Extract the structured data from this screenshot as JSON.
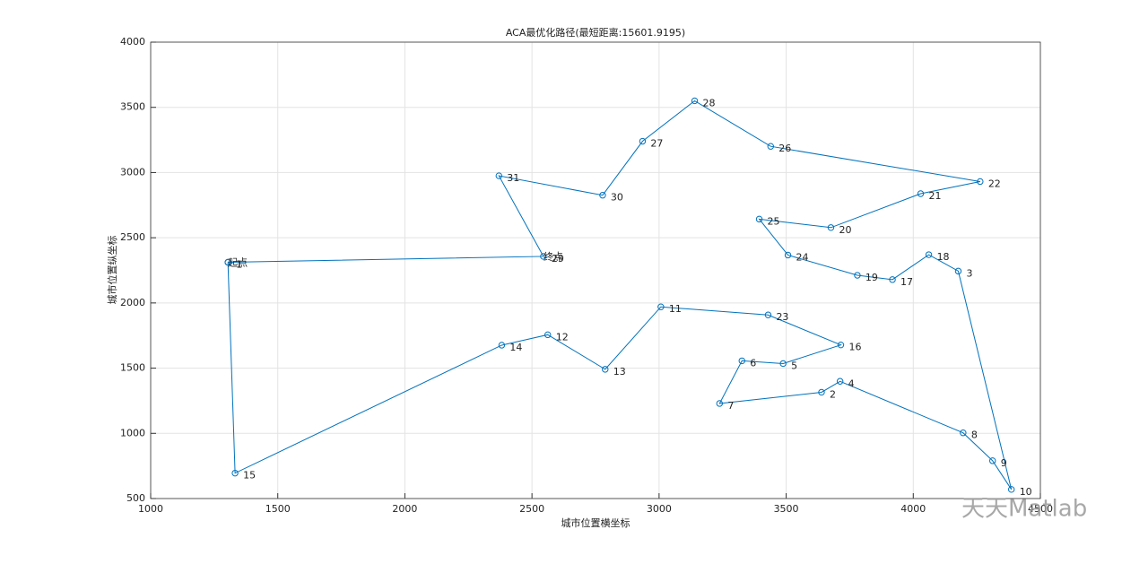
{
  "chart_data": {
    "type": "line",
    "title": "ACA最优化路径(最短距离:15601.9195)",
    "x_label": "城市位置横坐标",
    "y_label": "城市位置纵坐标",
    "x": [
      1304,
      1332,
      2381,
      2562,
      2788,
      3007,
      3429,
      3715,
      3488,
      3326,
      3238,
      3639,
      3712,
      4196,
      4312,
      4386,
      4177,
      4061,
      3918,
      3780,
      3507,
      3394,
      3676,
      4029,
      4263,
      3439,
      3140,
      2935,
      2778,
      2370,
      2545,
      1304
    ],
    "y": [
      2312,
      695,
      1676,
      1756,
      1491,
      1970,
      1908,
      1678,
      1535,
      1556,
      1229,
      1315,
      1399,
      1004,
      790,
      570,
      2244,
      2370,
      2179,
      2212,
      2367,
      2643,
      2578,
      2838,
      2931,
      3201,
      3550,
      3240,
      2826,
      2975,
      2357,
      2312
    ],
    "point_labels": [
      1,
      15,
      14,
      12,
      13,
      11,
      23,
      16,
      5,
      6,
      7,
      2,
      4,
      8,
      9,
      10,
      3,
      18,
      17,
      19,
      24,
      25,
      20,
      21,
      22,
      26,
      28,
      27,
      30,
      31,
      29,
      1
    ],
    "start_label": "起点",
    "end_label": "终点",
    "color": "#0072bd",
    "xlim": [
      1000,
      4500
    ],
    "xticks": [
      1000,
      1500,
      2000,
      2500,
      3000,
      3500,
      4000,
      4500
    ],
    "ylim": [
      500,
      4000
    ],
    "yticks": [
      500,
      1000,
      1500,
      2000,
      2500,
      3000,
      3500,
      4000
    ],
    "grid": true,
    "watermark": "天天Matlab"
  }
}
